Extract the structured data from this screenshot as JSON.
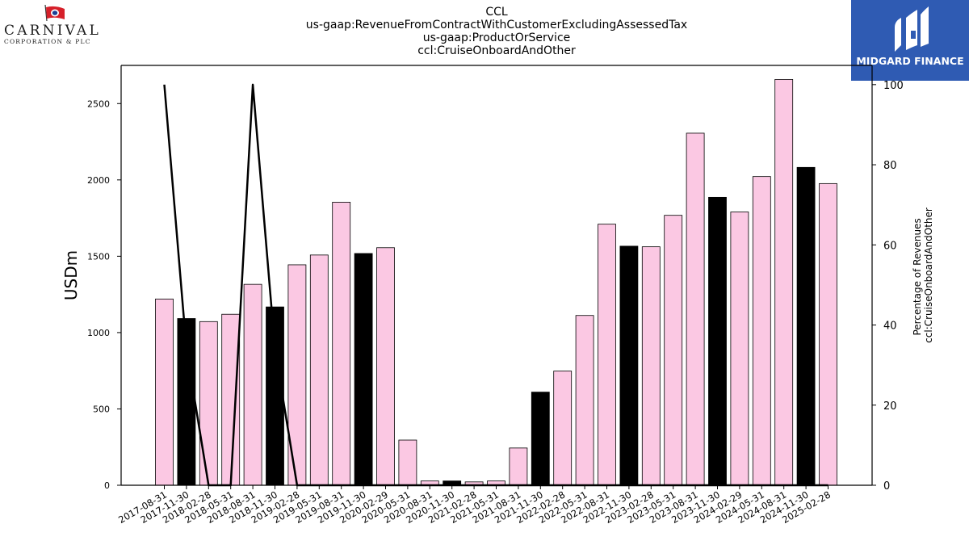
{
  "branding": {
    "left_logo_name": "CARNIVAL",
    "left_logo_sub": "CORPORATION & PLC",
    "right_logo_name": "MIDGARD FINANCE"
  },
  "colors": {
    "bar_pink": "#fbc8e3",
    "bar_black": "#000000",
    "line": "#000000",
    "brand_blue": "#2f5bb3"
  },
  "chart_data": {
    "type": "bar",
    "title_lines": [
      "CCL",
      "us-gaap:RevenueFromContractWithCustomerExcludingAssessedTax",
      "us-gaap:ProductOrService",
      "ccl:CruiseOnboardAndOther"
    ],
    "ylabel": "USDm",
    "y2label_lines": [
      "Percentage of Revenues",
      "ccl:CruiseOnboardAndOther"
    ],
    "ylim": [
      0,
      2750
    ],
    "y2lim": [
      0,
      104.8
    ],
    "yticks": [
      0,
      500,
      1000,
      1500,
      2000,
      2500
    ],
    "y2ticks": [
      0,
      20,
      40,
      60,
      80,
      100
    ],
    "categories": [
      "2017-08-31",
      "2017-11-30",
      "2018-02-28",
      "2018-05-31",
      "2018-08-31",
      "2018-11-30",
      "2019-02-28",
      "2019-05-31",
      "2019-08-31",
      "2019-11-30",
      "2020-02-29",
      "2020-05-31",
      "2020-08-31",
      "2020-11-30",
      "2021-02-28",
      "2021-05-31",
      "2021-08-31",
      "2021-11-30",
      "2022-02-28",
      "2022-05-31",
      "2022-08-31",
      "2022-11-30",
      "2023-02-28",
      "2023-05-31",
      "2023-08-31",
      "2023-11-30",
      "2024-02-29",
      "2024-05-31",
      "2024-08-31",
      "2024-11-30",
      "2025-02-28"
    ],
    "values": [
      1220,
      1092,
      1072,
      1120,
      1316,
      1168,
      1444,
      1508,
      1854,
      1518,
      1556,
      296,
      28,
      28,
      22,
      28,
      244,
      610,
      748,
      1112,
      1710,
      1566,
      1562,
      1768,
      2306,
      1886,
      1790,
      2022,
      2658,
      2082,
      1976
    ],
    "bar_colors": [
      "pink",
      "black",
      "pink",
      "pink",
      "pink",
      "black",
      "pink",
      "pink",
      "pink",
      "black",
      "pink",
      "pink",
      "pink",
      "black",
      "pink",
      "pink",
      "pink",
      "black",
      "pink",
      "pink",
      "pink",
      "black",
      "pink",
      "pink",
      "pink",
      "black",
      "pink",
      "pink",
      "pink",
      "black",
      "pink"
    ],
    "series": [
      {
        "values": [
          100,
          34,
          0,
          0,
          100,
          34,
          0,
          0,
          0,
          0,
          0,
          0,
          0,
          0,
          0,
          0,
          0,
          0,
          0,
          0,
          0,
          0,
          0,
          0,
          0,
          0,
          0,
          0,
          0,
          0,
          0
        ],
        "axis": "right",
        "type": "line"
      }
    ],
    "grid": false,
    "legend": "none"
  }
}
